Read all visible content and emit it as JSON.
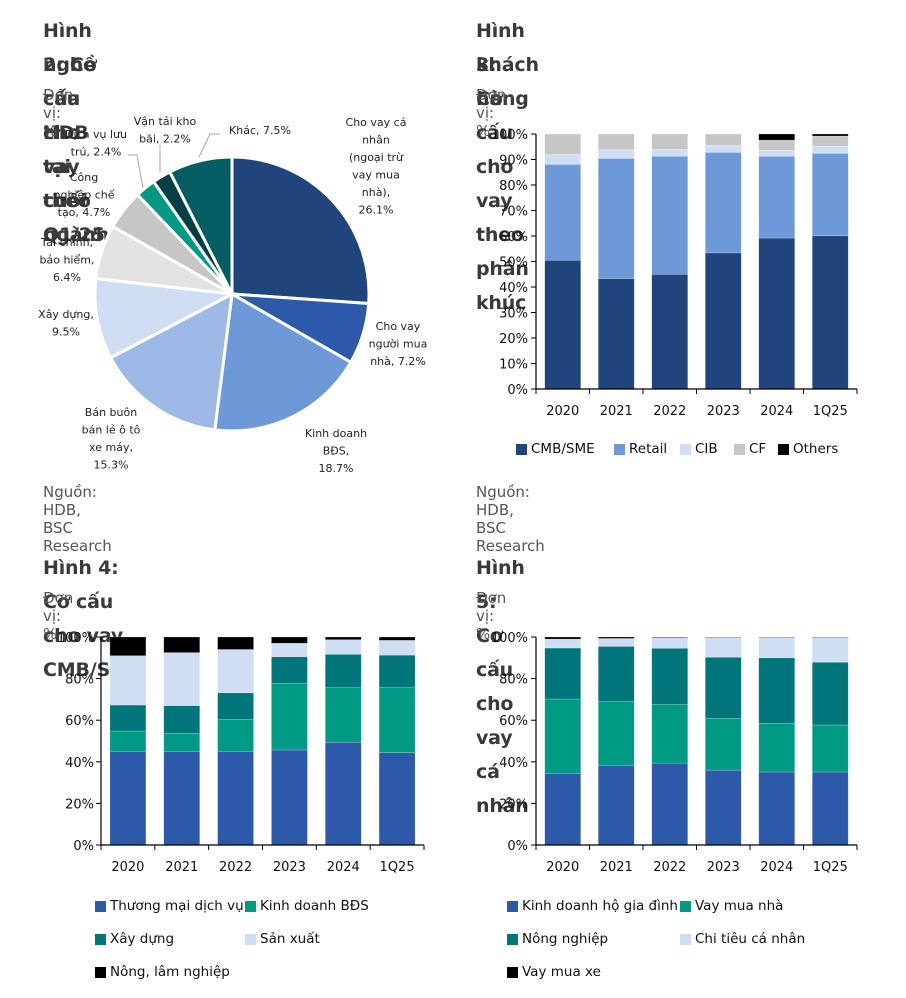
{
  "colors": {
    "navy": "#1f457c",
    "blue": "#2c5aa8",
    "mid_blue": "#6d99d9",
    "light_blue": "#9dbae6",
    "pale_blue": "#d0def3",
    "light_gray": "#e3e3e3",
    "gray": "#c6c6c6",
    "teal_green": "#009a84",
    "dark_teal": "#053f46",
    "teal": "#045d60",
    "teal_mid": "#00767a",
    "black": "#000000"
  },
  "figures": {
    "fig2": {
      "title_line1": "Hình 2: Cơ cấu cho vay theo ngành",
      "title_line2": "nghề của HDB tại cuối Q1/25",
      "unit": "Đơn vị: %",
      "source": "Nguồn: HDB, BSC Research"
    },
    "fig3": {
      "title_line1": "Hình 3: Cơ cấu cho vay theo phân khúc",
      "title_line2": "khách hàng",
      "unit": "Đơn vị: %",
      "source": "Nguồn: HDB, BSC Research"
    },
    "fig4": {
      "title_line1": "Hình 4: Cơ cấu cho vay CMB/SME",
      "unit": "Đơn vị: %"
    },
    "fig5": {
      "title_line1": "Hình 5: Cơ cấu cho vay cá nhân",
      "unit": "Đơn vị: %"
    }
  },
  "chart_data": [
    {
      "id": "fig2",
      "type": "pie",
      "title": "Hình 2: Cơ cấu cho vay theo ngành nghề của HDB tại cuối Q1/25",
      "unit": "%",
      "start": "12 o'clock, clockwise",
      "slices": [
        {
          "label": "Cho vay cá nhân (ngoại trừ vay mua nhà)",
          "value": 26.1,
          "label_lines": [
            "Cho vay cá",
            "nhân",
            "(ngoại trừ",
            "vay mua",
            "nhà),",
            "26.1%"
          ],
          "color": "#1f457c"
        },
        {
          "label": "Cho vay người mua nhà",
          "value": 7.2,
          "label_lines": [
            "Cho vay",
            "người mua",
            "nhà, 7.2%"
          ],
          "color": "#2c5aa8"
        },
        {
          "label": "Kinh doanh BĐS",
          "value": 18.7,
          "label_lines": [
            "Kinh doanh",
            "BĐS,",
            "18.7%"
          ],
          "color": "#6d99d9"
        },
        {
          "label": "Bán buôn bán lẻ ô tô xe máy",
          "value": 15.3,
          "label_lines": [
            "Bán buôn",
            "bán lẻ ô tô",
            "xe máy,",
            "15.3%"
          ],
          "color": "#9dbae6"
        },
        {
          "label": "Xây dựng",
          "value": 9.5,
          "label_lines": [
            "Xây dựng,",
            "9.5%"
          ],
          "color": "#d0def3"
        },
        {
          "label": "Tài chính, bảo hiểm",
          "value": 6.4,
          "label_lines": [
            "Tài chính,",
            "bảo hiểm,",
            "6.4%"
          ],
          "color": "#e3e3e3"
        },
        {
          "label": "Công nghiệp chế tạo",
          "value": 4.7,
          "label_lines": [
            "Công",
            "nghiệp chế",
            "tạo, 4.7%"
          ],
          "color": "#c6c6c6"
        },
        {
          "label": "Dịch vụ lưu trú",
          "value": 2.4,
          "label_lines": [
            "Dịch vụ lưu",
            "trú, 2.4%"
          ],
          "color": "#009a84"
        },
        {
          "label": "Vận tải kho bãi",
          "value": 2.2,
          "label_lines": [
            "Vận tải kho",
            "bãi, 2.2%"
          ],
          "color": "#053f46"
        },
        {
          "label": "Khác",
          "value": 7.5,
          "label_lines": [
            "Khác, 7.5%"
          ],
          "color": "#045d60"
        }
      ]
    },
    {
      "id": "fig3",
      "type": "bar",
      "stacked": true,
      "title": "Hình 3: Cơ cấu cho vay theo phân khúc khách hàng",
      "xlabel": "",
      "ylabel": "",
      "categories": [
        "2020",
        "2021",
        "2022",
        "2023",
        "2024",
        "1Q25"
      ],
      "ylim": [
        0,
        100
      ],
      "yticks": [
        0,
        10,
        20,
        30,
        40,
        50,
        60,
        70,
        80,
        90,
        100
      ],
      "ytick_labels": [
        "0%",
        "10%",
        "20%",
        "30%",
        "40%",
        "50%",
        "60%",
        "70%",
        "80%",
        "90%",
        "100%"
      ],
      "legend_position": "bottom",
      "grid": false,
      "series": [
        {
          "name": "CMB/SME",
          "color": "#1f457c",
          "values": [
            50.5,
            43.3,
            45.0,
            53.4,
            59.2,
            60.1
          ]
        },
        {
          "name": "Retail",
          "color": "#6d99d9",
          "values": [
            37.6,
            47.1,
            46.3,
            39.4,
            32.1,
            32.3
          ]
        },
        {
          "name": "CIB",
          "color": "#d0def3",
          "values": [
            3.9,
            3.4,
            2.7,
            2.8,
            2.3,
            2.8
          ]
        },
        {
          "name": "CF",
          "color": "#c6c6c6",
          "values": [
            8.0,
            6.2,
            6.0,
            4.4,
            4.0,
            4.0
          ]
        },
        {
          "name": "Others",
          "color": "#000000",
          "values": [
            0,
            0,
            0,
            0,
            2.4,
            0.8
          ]
        }
      ]
    },
    {
      "id": "fig4",
      "type": "bar",
      "stacked": true,
      "title": "Hình 4: Cơ cấu cho vay CMB/SME",
      "xlabel": "",
      "ylabel": "",
      "categories": [
        "2020",
        "2021",
        "2022",
        "2023",
        "2024",
        "1Q25"
      ],
      "ylim": [
        0,
        100
      ],
      "yticks": [
        0,
        20,
        40,
        60,
        80,
        100
      ],
      "ytick_labels": [
        "0%",
        "20%",
        "40%",
        "60%",
        "80%",
        "100%"
      ],
      "legend_position": "bottom",
      "grid": false,
      "series": [
        {
          "name": "Thương mại dịch vụ",
          "color": "#2c5aa8",
          "values": [
            45.0,
            45.0,
            45.0,
            45.7,
            49.4,
            44.4
          ]
        },
        {
          "name": "Kinh doanh BĐS",
          "color": "#009a84",
          "values": [
            9.8,
            8.7,
            15.4,
            32.0,
            26.3,
            31.3
          ]
        },
        {
          "name": "Xây dựng",
          "color": "#00767a",
          "values": [
            12.5,
            13.3,
            12.8,
            12.8,
            16.0,
            15.6
          ]
        },
        {
          "name": "Sản xuất",
          "color": "#d0def3",
          "values": [
            23.7,
            25.5,
            20.8,
            6.5,
            7.0,
            7.1
          ]
        },
        {
          "name": "Nông, lâm nghiệp",
          "color": "#000000",
          "values": [
            9.0,
            7.5,
            6.0,
            3.0,
            1.3,
            1.6
          ]
        }
      ]
    },
    {
      "id": "fig5",
      "type": "bar",
      "stacked": true,
      "title": "Hình 5: Cơ cấu cho vay cá nhân",
      "xlabel": "",
      "ylabel": "",
      "categories": [
        "2020",
        "2021",
        "2022",
        "2023",
        "2024",
        "1Q25"
      ],
      "ylim": [
        0,
        100
      ],
      "yticks": [
        0,
        20,
        40,
        60,
        80,
        100
      ],
      "ytick_labels": [
        "0%",
        "20%",
        "40%",
        "60%",
        "80%",
        "100%"
      ],
      "legend_position": "bottom",
      "grid": false,
      "series": [
        {
          "name": "Kinh doanh hộ gia đình",
          "color": "#2c5aa8",
          "values": [
            34.4,
            38.3,
            39.4,
            36.0,
            35.1,
            35.1
          ]
        },
        {
          "name": "Vay mua nhà",
          "color": "#009a84",
          "values": [
            35.8,
            30.7,
            28.2,
            24.9,
            23.4,
            22.6
          ]
        },
        {
          "name": "Nông nghiệp",
          "color": "#00767a",
          "values": [
            24.5,
            26.5,
            27.0,
            29.4,
            31.5,
            30.2
          ]
        },
        {
          "name": "Chi tiêu cá nhân",
          "color": "#d0def3",
          "values": [
            4.3,
            3.8,
            5.1,
            9.5,
            9.8,
            11.9
          ]
        },
        {
          "name": "Vay mua xe",
          "color": "#000000",
          "values": [
            1.0,
            0.7,
            0.3,
            0.2,
            0.2,
            0.2
          ]
        }
      ]
    }
  ]
}
